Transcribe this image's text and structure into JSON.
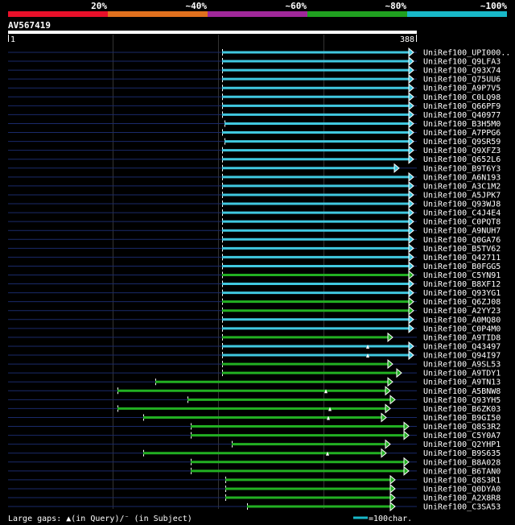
{
  "legend": {
    "labels": [
      "20%",
      "~40%",
      "~60%",
      "~80%",
      "~100%"
    ],
    "colors": [
      "#e8102a",
      "#e0701e",
      "#a0289a",
      "#20a020",
      "#18b8c8"
    ]
  },
  "query": {
    "id": "AV567419",
    "start_label": "1",
    "end_label": "388"
  },
  "footer": {
    "gaps_label": "Large gaps: ▲(in Query)/⁻ (in Subject)",
    "scale_label": "=100char."
  },
  "hits": [
    {
      "name": "UniRef100_UPI000..",
      "color": "cyan"
    },
    {
      "name": "UniRef100_Q9LFA3",
      "color": "cyan"
    },
    {
      "name": "UniRef100_Q93X74",
      "color": "cyan"
    },
    {
      "name": "UniRef100_Q75UU6",
      "color": "cyan"
    },
    {
      "name": "UniRef100_A9P7V5",
      "color": "cyan"
    },
    {
      "name": "UniRef100_C0LQ98",
      "color": "cyan"
    },
    {
      "name": "UniRef100_Q66PF9",
      "color": "cyan"
    },
    {
      "name": "UniRef100_Q40977",
      "color": "cyan"
    },
    {
      "name": "UniRef100_B3H5M0",
      "color": "cyan"
    },
    {
      "name": "UniRef100_A7PPG6",
      "color": "cyan"
    },
    {
      "name": "UniRef100_Q9SR59",
      "color": "cyan"
    },
    {
      "name": "UniRef100_Q9XFZ3",
      "color": "cyan"
    },
    {
      "name": "UniRef100_Q652L6",
      "color": "cyan"
    },
    {
      "name": "UniRef100_B9T6Y3",
      "color": "cyan"
    },
    {
      "name": "UniRef100_A6N193",
      "color": "cyan"
    },
    {
      "name": "UniRef100_A3C1M2",
      "color": "cyan"
    },
    {
      "name": "UniRef100_A5JPK7",
      "color": "cyan"
    },
    {
      "name": "UniRef100_Q93WJ8",
      "color": "cyan"
    },
    {
      "name": "UniRef100_C4J4E4",
      "color": "cyan"
    },
    {
      "name": "UniRef100_C0PQT8",
      "color": "cyan"
    },
    {
      "name": "UniRef100_A9NUH7",
      "color": "cyan"
    },
    {
      "name": "UniRef100_Q0GA76",
      "color": "cyan"
    },
    {
      "name": "UniRef100_B5TV62",
      "color": "cyan"
    },
    {
      "name": "UniRef100_Q42711",
      "color": "cyan"
    },
    {
      "name": "UniRef100_B0FGG5",
      "color": "cyan"
    },
    {
      "name": "UniRef100_C5YN91",
      "color": "green"
    },
    {
      "name": "UniRef100_B8XF12",
      "color": "cyan"
    },
    {
      "name": "UniRef100_Q93YG1",
      "color": "cyan"
    },
    {
      "name": "UniRef100_Q6ZJ08",
      "color": "green"
    },
    {
      "name": "UniRef100_A2YY23",
      "color": "green"
    },
    {
      "name": "UniRef100_A0MQ80",
      "color": "cyan"
    },
    {
      "name": "UniRef100_C0P4M0",
      "color": "cyan"
    },
    {
      "name": "UniRef100_A9TID8",
      "color": "green"
    },
    {
      "name": "UniRef100_Q43497",
      "color": "cyan"
    },
    {
      "name": "UniRef100_Q94I97",
      "color": "cyan"
    },
    {
      "name": "UniRef100_A9SL53",
      "color": "green"
    },
    {
      "name": "UniRef100_A9TDY1",
      "color": "green"
    },
    {
      "name": "UniRef100_A9TN13",
      "color": "green"
    },
    {
      "name": "UniRef100_A5BNW8",
      "color": "green"
    },
    {
      "name": "UniRef100_Q93YH5",
      "color": "green"
    },
    {
      "name": "UniRef100_B6ZK03",
      "color": "green"
    },
    {
      "name": "UniRef100_B9GI50",
      "color": "green"
    },
    {
      "name": "UniRef100_Q8S3R2",
      "color": "green"
    },
    {
      "name": "UniRef100_C5Y0A7",
      "color": "green"
    },
    {
      "name": "UniRef100_Q2YHP1",
      "color": "green"
    },
    {
      "name": "UniRef100_B9S635",
      "color": "green"
    },
    {
      "name": "UniRef100_B8A028",
      "color": "green"
    },
    {
      "name": "UniRef100_B6TAN0",
      "color": "green"
    },
    {
      "name": "UniRef100_Q8S3R1",
      "color": "green"
    },
    {
      "name": "UniRef100_Q0DYA0",
      "color": "green"
    },
    {
      "name": "UniRef100_A2X8R8",
      "color": "green"
    },
    {
      "name": "UniRef100_C3SA53",
      "color": "green"
    }
  ]
}
